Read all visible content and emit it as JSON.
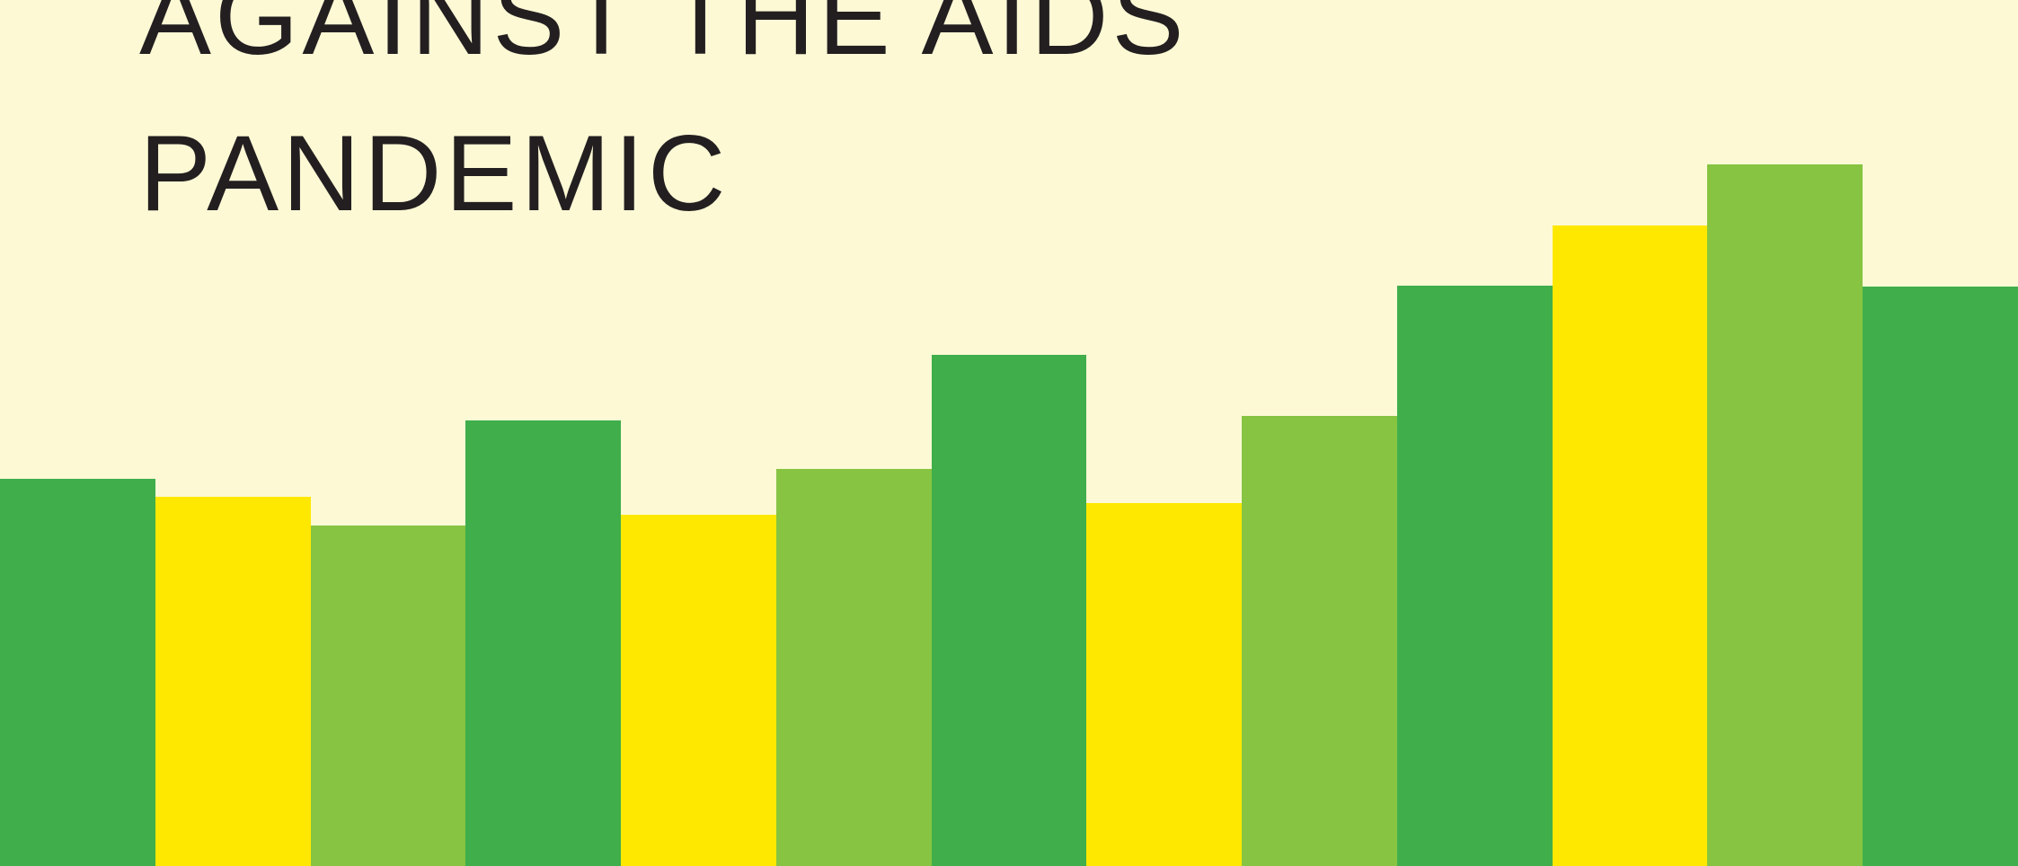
{
  "colors": {
    "background": "#fdf9d5",
    "dark_green": "#40ae4b",
    "yellow": "#ffe800",
    "light_green": "#86c441",
    "text": "#231f20"
  },
  "headline": {
    "lines": [
      "AGAINST THE AIDS",
      "PANDEMIC"
    ]
  },
  "bars": [
    {
      "color": "dark_green",
      "level": 0.447
    },
    {
      "color": "yellow",
      "level": 0.426
    },
    {
      "color": "light_green",
      "level": 0.393
    },
    {
      "color": "dark_green",
      "level": 0.515
    },
    {
      "color": "yellow",
      "level": 0.406
    },
    {
      "color": "light_green",
      "level": 0.458
    },
    {
      "color": "dark_green",
      "level": 0.59
    },
    {
      "color": "yellow",
      "level": 0.419
    },
    {
      "color": "light_green",
      "level": 0.52
    },
    {
      "color": "dark_green",
      "level": 0.67
    },
    {
      "color": "yellow",
      "level": 0.74
    },
    {
      "color": "light_green",
      "level": 0.81
    },
    {
      "color": "dark_green",
      "level": 0.669
    }
  ]
}
